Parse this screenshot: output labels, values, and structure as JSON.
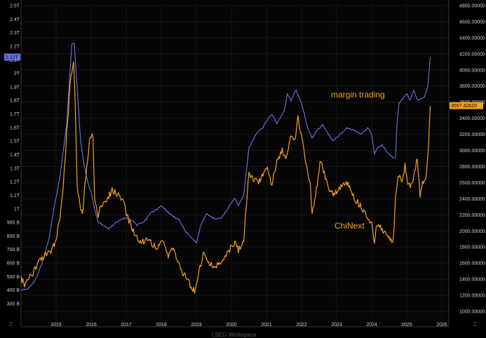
{
  "chart_data": {
    "type": "line",
    "x_range": [
      2014.0,
      2026.2
    ],
    "x_ticks": [
      "2015",
      "2016",
      "2017",
      "2018",
      "2019",
      "2020",
      "2021",
      "2022",
      "2023",
      "2024",
      "2025",
      "2026"
    ],
    "left_axis": {
      "ticks": [
        "300 B",
        "400 B",
        "500 B",
        "600 B",
        "700 B",
        "800 B",
        "900 B",
        "1T",
        "1.1T",
        "1.2T",
        "1.3T",
        "1.4T",
        "1.5T",
        "1.6T",
        "1.7T",
        "1.8T",
        "1.9T",
        "2T",
        "2.1T",
        "2.2T",
        "2.3T",
        "2.4T",
        "2.5T"
      ],
      "range": [
        0.3,
        2.5
      ],
      "current_label": "2.12T"
    },
    "right_axis": {
      "ticks": [
        "1000.00000",
        "1200.00000",
        "1400.00000",
        "1600.00000",
        "1800.00000",
        "2000.00000",
        "2200.00000",
        "2400.00000",
        "2600.00000",
        "2800.00000",
        "3000.00000",
        "3200.00000",
        "3400.00000",
        "3600.00000",
        "3800.00000",
        "4000.00000",
        "4200.00000",
        "4400.00000",
        "4600.00000",
        "4800.00000"
      ],
      "range": [
        1000,
        4800
      ],
      "current_label": "3557.42620"
    },
    "annotations": [
      "margin trading",
      "ChiNext"
    ],
    "series": [
      {
        "axis": "left",
        "color": "#6b73e8",
        "points": [
          [
            2014.0,
            0.4
          ],
          [
            2014.2,
            0.41
          ],
          [
            2014.4,
            0.47
          ],
          [
            2014.6,
            0.6
          ],
          [
            2014.8,
            0.78
          ],
          [
            2014.95,
            1.02
          ],
          [
            2015.1,
            1.22
          ],
          [
            2015.3,
            1.62
          ],
          [
            2015.45,
            2.22
          ],
          [
            2015.52,
            2.22
          ],
          [
            2015.6,
            1.9
          ],
          [
            2015.7,
            1.5
          ],
          [
            2015.8,
            1.32
          ],
          [
            2015.9,
            1.2
          ],
          [
            2016.0,
            1.12
          ],
          [
            2016.1,
            1.0
          ],
          [
            2016.2,
            0.9
          ],
          [
            2016.35,
            0.88
          ],
          [
            2016.5,
            0.85
          ],
          [
            2016.7,
            0.9
          ],
          [
            2016.9,
            0.93
          ],
          [
            2017.1,
            0.93
          ],
          [
            2017.3,
            0.88
          ],
          [
            2017.5,
            0.9
          ],
          [
            2017.7,
            0.97
          ],
          [
            2017.9,
            1.0
          ],
          [
            2018.0,
            1.02
          ],
          [
            2018.1,
            1.0
          ],
          [
            2018.3,
            0.95
          ],
          [
            2018.5,
            0.92
          ],
          [
            2018.7,
            0.83
          ],
          [
            2018.9,
            0.78
          ],
          [
            2019.0,
            0.75
          ],
          [
            2019.05,
            0.8
          ],
          [
            2019.15,
            0.9
          ],
          [
            2019.3,
            0.96
          ],
          [
            2019.5,
            0.93
          ],
          [
            2019.7,
            0.93
          ],
          [
            2019.85,
            0.98
          ],
          [
            2020.0,
            1.05
          ],
          [
            2020.1,
            1.08
          ],
          [
            2020.2,
            1.02
          ],
          [
            2020.35,
            1.1
          ],
          [
            2020.5,
            1.45
          ],
          [
            2020.7,
            1.55
          ],
          [
            2020.9,
            1.6
          ],
          [
            2021.0,
            1.65
          ],
          [
            2021.15,
            1.7
          ],
          [
            2021.3,
            1.63
          ],
          [
            2021.5,
            1.72
          ],
          [
            2021.6,
            1.85
          ],
          [
            2021.7,
            1.8
          ],
          [
            2021.85,
            1.88
          ],
          [
            2022.0,
            1.78
          ],
          [
            2022.15,
            1.62
          ],
          [
            2022.3,
            1.52
          ],
          [
            2022.45,
            1.58
          ],
          [
            2022.6,
            1.62
          ],
          [
            2022.75,
            1.56
          ],
          [
            2022.9,
            1.5
          ],
          [
            2023.1,
            1.55
          ],
          [
            2023.3,
            1.6
          ],
          [
            2023.5,
            1.58
          ],
          [
            2023.7,
            1.55
          ],
          [
            2023.9,
            1.6
          ],
          [
            2024.0,
            1.55
          ],
          [
            2024.08,
            1.4
          ],
          [
            2024.15,
            1.45
          ],
          [
            2024.3,
            1.47
          ],
          [
            2024.5,
            1.4
          ],
          [
            2024.6,
            1.38
          ],
          [
            2024.68,
            1.38
          ],
          [
            2024.72,
            1.62
          ],
          [
            2024.78,
            1.78
          ],
          [
            2024.9,
            1.82
          ],
          [
            2025.0,
            1.85
          ],
          [
            2025.1,
            1.8
          ],
          [
            2025.2,
            1.88
          ],
          [
            2025.3,
            1.8
          ],
          [
            2025.5,
            1.82
          ],
          [
            2025.6,
            1.9
          ],
          [
            2025.67,
            2.12
          ]
        ]
      },
      {
        "axis": "right",
        "color": "#f5a11c",
        "points": [
          [
            2014.0,
            1420
          ],
          [
            2014.1,
            1330
          ],
          [
            2014.2,
            1380
          ],
          [
            2014.3,
            1450
          ],
          [
            2014.4,
            1520
          ],
          [
            2014.5,
            1600
          ],
          [
            2014.6,
            1650
          ],
          [
            2014.7,
            1700
          ],
          [
            2014.8,
            1720
          ],
          [
            2014.9,
            1780
          ],
          [
            2015.0,
            1900
          ],
          [
            2015.1,
            2150
          ],
          [
            2015.2,
            2500
          ],
          [
            2015.3,
            3200
          ],
          [
            2015.4,
            3800
          ],
          [
            2015.45,
            4000
          ],
          [
            2015.5,
            4100
          ],
          [
            2015.55,
            3500
          ],
          [
            2015.6,
            2600
          ],
          [
            2015.65,
            2400
          ],
          [
            2015.75,
            2200
          ],
          [
            2015.85,
            2700
          ],
          [
            2015.95,
            3100
          ],
          [
            2016.05,
            3200
          ],
          [
            2016.1,
            2400
          ],
          [
            2016.2,
            2200
          ],
          [
            2016.3,
            2300
          ],
          [
            2016.45,
            2400
          ],
          [
            2016.6,
            2500
          ],
          [
            2016.75,
            2450
          ],
          [
            2016.9,
            2400
          ],
          [
            2017.0,
            2200
          ],
          [
            2017.2,
            2000
          ],
          [
            2017.4,
            1850
          ],
          [
            2017.6,
            1900
          ],
          [
            2017.8,
            1820
          ],
          [
            2017.9,
            1800
          ],
          [
            2018.05,
            1850
          ],
          [
            2018.2,
            1700
          ],
          [
            2018.3,
            1800
          ],
          [
            2018.45,
            1650
          ],
          [
            2018.6,
            1500
          ],
          [
            2018.75,
            1400
          ],
          [
            2018.85,
            1300
          ],
          [
            2018.95,
            1250
          ],
          [
            2019.1,
            1550
          ],
          [
            2019.2,
            1700
          ],
          [
            2019.3,
            1650
          ],
          [
            2019.5,
            1550
          ],
          [
            2019.7,
            1600
          ],
          [
            2019.85,
            1700
          ],
          [
            2020.0,
            1800
          ],
          [
            2020.1,
            1850
          ],
          [
            2020.2,
            1750
          ],
          [
            2020.35,
            1900
          ],
          [
            2020.5,
            2700
          ],
          [
            2020.6,
            2650
          ],
          [
            2020.75,
            2600
          ],
          [
            2020.9,
            2700
          ],
          [
            2021.0,
            2800
          ],
          [
            2021.15,
            2600
          ],
          [
            2021.3,
            2850
          ],
          [
            2021.45,
            3000
          ],
          [
            2021.55,
            2900
          ],
          [
            2021.7,
            3200
          ],
          [
            2021.8,
            3100
          ],
          [
            2021.9,
            3400
          ],
          [
            2022.0,
            3200
          ],
          [
            2022.1,
            2900
          ],
          [
            2022.25,
            2600
          ],
          [
            2022.3,
            2200
          ],
          [
            2022.45,
            2600
          ],
          [
            2022.55,
            2900
          ],
          [
            2022.65,
            2700
          ],
          [
            2022.8,
            2500
          ],
          [
            2022.95,
            2450
          ],
          [
            2023.1,
            2550
          ],
          [
            2023.3,
            2600
          ],
          [
            2023.5,
            2400
          ],
          [
            2023.7,
            2300
          ],
          [
            2023.85,
            2200
          ],
          [
            2024.0,
            2100
          ],
          [
            2024.08,
            1850
          ],
          [
            2024.15,
            2100
          ],
          [
            2024.3,
            2000
          ],
          [
            2024.45,
            1950
          ],
          [
            2024.55,
            1870
          ],
          [
            2024.62,
            1880
          ],
          [
            2024.68,
            2450
          ],
          [
            2024.75,
            2700
          ],
          [
            2024.85,
            2600
          ],
          [
            2024.95,
            2800
          ],
          [
            2025.05,
            2550
          ],
          [
            2025.15,
            2600
          ],
          [
            2025.3,
            2900
          ],
          [
            2025.38,
            2450
          ],
          [
            2025.45,
            2600
          ],
          [
            2025.55,
            2700
          ],
          [
            2025.62,
            3000
          ],
          [
            2025.67,
            3550
          ]
        ]
      }
    ]
  },
  "footer": {
    "watermark": "LSEG Workspace",
    "corner_left": "Z",
    "corner_right": "Z"
  }
}
